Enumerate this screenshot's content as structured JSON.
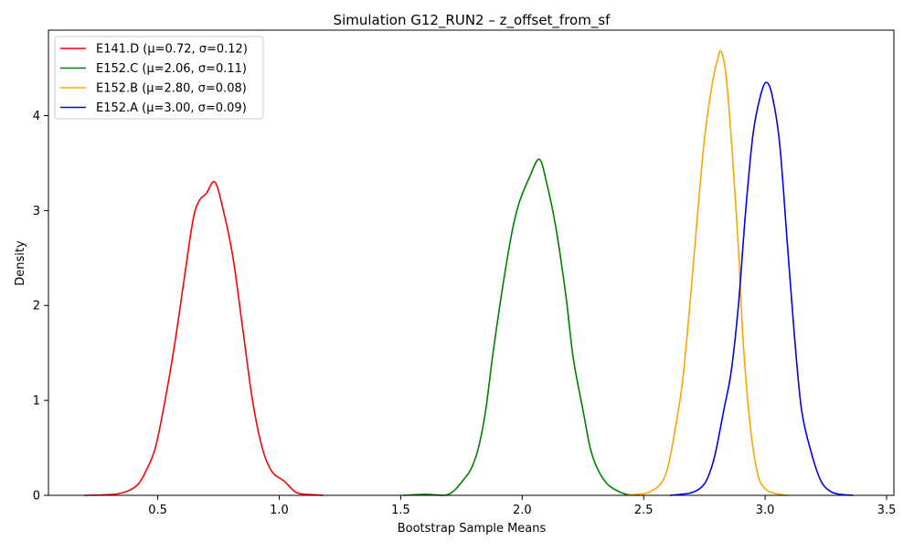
{
  "chart_data": {
    "type": "line",
    "title": "Simulation G12_RUN2 – z_offset_from_sf",
    "xlabel": "Bootstrap Sample Means",
    "ylabel": "Density",
    "xlim": [
      0.05,
      3.53
    ],
    "ylim": [
      0,
      4.9
    ],
    "x_ticks": [
      0.5,
      1.0,
      1.5,
      2.0,
      2.5,
      3.0,
      3.5
    ],
    "x_tick_labels": [
      "0.5",
      "1.0",
      "1.5",
      "2.0",
      "2.5",
      "3.0",
      "3.5"
    ],
    "y_ticks": [
      0,
      1,
      2,
      3,
      4
    ],
    "y_tick_labels": [
      "0",
      "1",
      "2",
      "3",
      "4"
    ],
    "grid": false,
    "legend_position": "top-left",
    "series": [
      {
        "name": "E141.D (μ=0.72, σ=0.12)",
        "color": "#ff0000",
        "points": [
          [
            0.2,
            0.0
          ],
          [
            0.32,
            0.01
          ],
          [
            0.38,
            0.05
          ],
          [
            0.42,
            0.12
          ],
          [
            0.45,
            0.25
          ],
          [
            0.49,
            0.5
          ],
          [
            0.53,
            1.0
          ],
          [
            0.57,
            1.6
          ],
          [
            0.61,
            2.3
          ],
          [
            0.645,
            2.9
          ],
          [
            0.67,
            3.1
          ],
          [
            0.7,
            3.18
          ],
          [
            0.735,
            3.3
          ],
          [
            0.77,
            3.0
          ],
          [
            0.81,
            2.5
          ],
          [
            0.85,
            1.75
          ],
          [
            0.89,
            1.0
          ],
          [
            0.93,
            0.5
          ],
          [
            0.97,
            0.25
          ],
          [
            1.02,
            0.15
          ],
          [
            1.07,
            0.03
          ],
          [
            1.12,
            0.01
          ],
          [
            1.18,
            0.0
          ]
        ]
      },
      {
        "name": "E152.C (μ=2.06, σ=0.11)",
        "color": "#008000",
        "points": [
          [
            1.51,
            0.0
          ],
          [
            1.6,
            0.01
          ],
          [
            1.68,
            0.0
          ],
          [
            1.72,
            0.05
          ],
          [
            1.76,
            0.17
          ],
          [
            1.79,
            0.28
          ],
          [
            1.82,
            0.5
          ],
          [
            1.85,
            0.9
          ],
          [
            1.88,
            1.5
          ],
          [
            1.92,
            2.2
          ],
          [
            1.96,
            2.8
          ],
          [
            1.99,
            3.1
          ],
          [
            2.03,
            3.35
          ],
          [
            2.07,
            3.54
          ],
          [
            2.1,
            3.3
          ],
          [
            2.14,
            2.8
          ],
          [
            2.18,
            2.1
          ],
          [
            2.21,
            1.45
          ],
          [
            2.25,
            0.9
          ],
          [
            2.28,
            0.5
          ],
          [
            2.31,
            0.28
          ],
          [
            2.35,
            0.12
          ],
          [
            2.39,
            0.05
          ],
          [
            2.43,
            0.01
          ],
          [
            2.48,
            0.0
          ]
        ]
      },
      {
        "name": "E152.B (μ=2.80, σ=0.08)",
        "color": "#ffa500",
        "points": [
          [
            2.42,
            0.0
          ],
          [
            2.47,
            0.01
          ],
          [
            2.52,
            0.03
          ],
          [
            2.57,
            0.12
          ],
          [
            2.6,
            0.3
          ],
          [
            2.63,
            0.7
          ],
          [
            2.66,
            1.2
          ],
          [
            2.69,
            2.0
          ],
          [
            2.72,
            2.9
          ],
          [
            2.75,
            3.75
          ],
          [
            2.78,
            4.3
          ],
          [
            2.805,
            4.6
          ],
          [
            2.82,
            4.67
          ],
          [
            2.84,
            4.4
          ],
          [
            2.865,
            3.6
          ],
          [
            2.89,
            2.6
          ],
          [
            2.91,
            1.6
          ],
          [
            2.94,
            0.7
          ],
          [
            2.97,
            0.22
          ],
          [
            3.0,
            0.07
          ],
          [
            3.04,
            0.02
          ],
          [
            3.09,
            0.0
          ]
        ]
      },
      {
        "name": "E152.A (μ=3.00, σ=0.09)",
        "color": "#0000ff",
        "points": [
          [
            2.61,
            0.0
          ],
          [
            2.7,
            0.03
          ],
          [
            2.75,
            0.12
          ],
          [
            2.78,
            0.3
          ],
          [
            2.8,
            0.5
          ],
          [
            2.83,
            0.9
          ],
          [
            2.86,
            1.3
          ],
          [
            2.89,
            2.0
          ],
          [
            2.92,
            3.0
          ],
          [
            2.95,
            3.8
          ],
          [
            2.98,
            4.2
          ],
          [
            3.005,
            4.35
          ],
          [
            3.03,
            4.2
          ],
          [
            3.06,
            3.7
          ],
          [
            3.09,
            2.7
          ],
          [
            3.12,
            1.7
          ],
          [
            3.15,
            0.9
          ],
          [
            3.19,
            0.45
          ],
          [
            3.23,
            0.15
          ],
          [
            3.27,
            0.04
          ],
          [
            3.31,
            0.01
          ],
          [
            3.36,
            0.0
          ]
        ]
      }
    ]
  }
}
